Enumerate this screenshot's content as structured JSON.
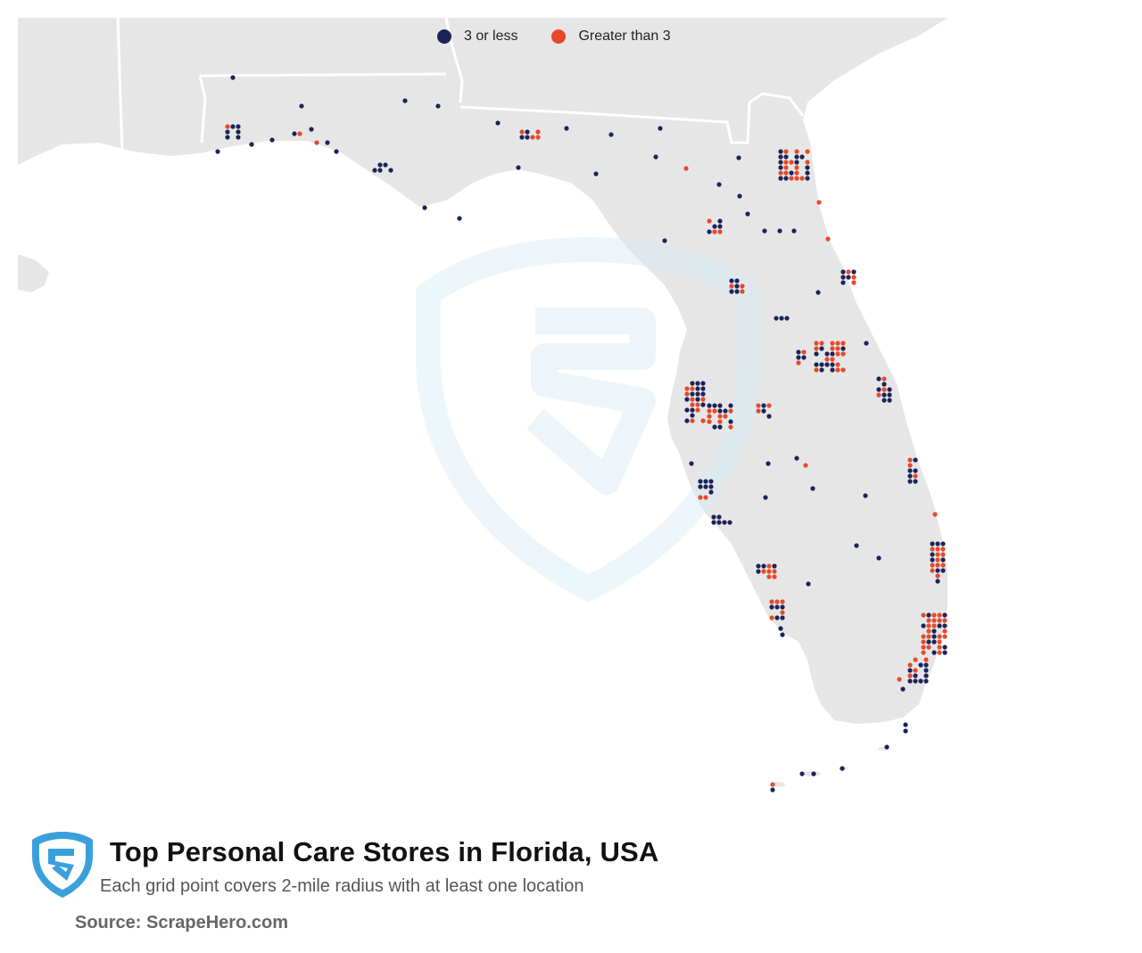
{
  "title": "Top Personal Care Stores in Florida, USA",
  "subtitle": "Each grid point covers 2-mile radius with at least one location",
  "source": "Source: ScrapeHero.com",
  "colors": {
    "low": "#1b2359",
    "high": "#e8482a",
    "land": "#e6e6e6",
    "border": "#ffffff",
    "water": "#ffffff",
    "logo": "#3aa0dc"
  },
  "legend": {
    "low_label": "3 or less",
    "high_label": "Greater than 3"
  },
  "icons": [
    "scrapehero-logo-icon",
    "scrapehero-watermark-icon"
  ]
}
